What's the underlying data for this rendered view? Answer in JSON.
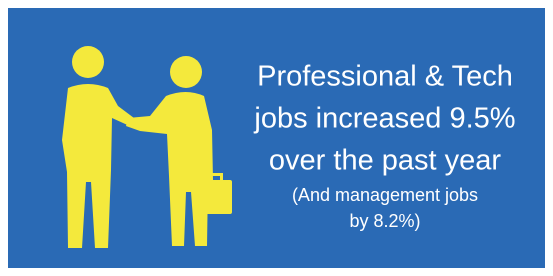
{
  "headline": [
    "Professional & Tech",
    "jobs increased 9.5%",
    "over the past year"
  ],
  "subline": [
    "(And management jobs",
    "by 8.2%)"
  ]
}
